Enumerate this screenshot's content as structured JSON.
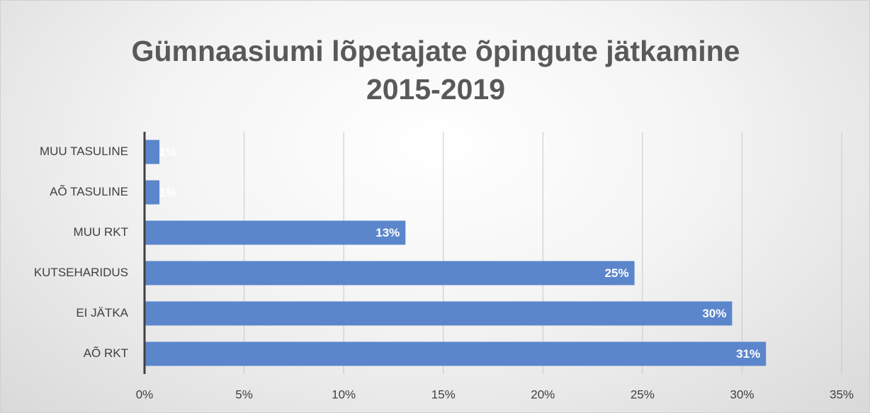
{
  "chart_data": {
    "type": "bar",
    "orientation": "horizontal",
    "title": "Gümnaasiumi lõpetajate õpingute jätkamine 2015-2019",
    "categories": [
      "MUU TASULINE",
      "AÕ TASULINE",
      "MUU RKT",
      "KUTSEHARIDUS",
      "EI JÄTKA",
      "AÕ RKT"
    ],
    "values": [
      0.75,
      0.75,
      13.1,
      24.6,
      29.5,
      31.2
    ],
    "value_labels": [
      "1%",
      "1%",
      "13%",
      "25%",
      "30%",
      "31%"
    ],
    "color": "#5b86cc",
    "xlim": [
      0,
      35
    ],
    "xticks": [
      {
        "value": 0,
        "label": "0%"
      },
      {
        "value": 5,
        "label": "5%"
      },
      {
        "value": 10,
        "label": "10%"
      },
      {
        "value": 15,
        "label": "15%"
      },
      {
        "value": 20,
        "label": "20%"
      },
      {
        "value": 25,
        "label": "25%"
      },
      {
        "value": 30,
        "label": "30%"
      },
      {
        "value": 35,
        "label": "35%"
      }
    ],
    "grid": true
  }
}
